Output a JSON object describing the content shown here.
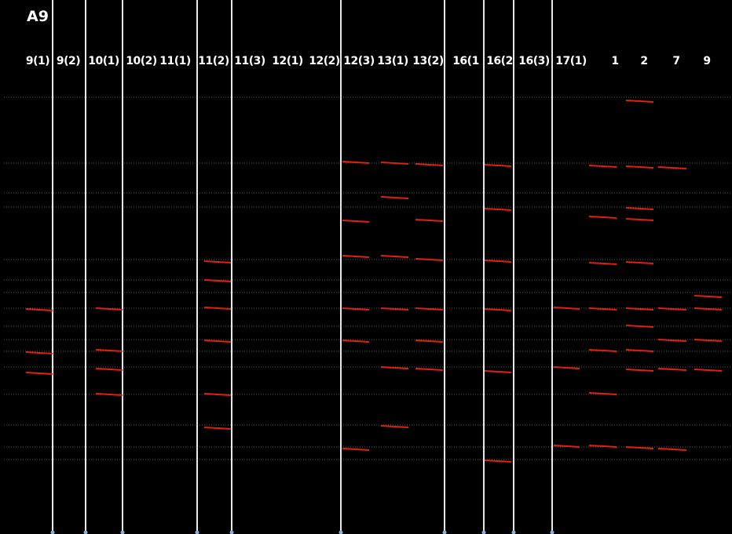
{
  "title": "A9",
  "lanes": [
    "9(1)",
    "9(2)",
    "10(1)",
    "10(2)",
    "11(1)",
    "11(2)",
    "11(3)",
    "12(1)",
    "12(2)",
    "12(3)",
    "13(1)",
    "13(2)",
    "16(1",
    "16(2",
    "16(3)",
    "17(1)",
    "1",
    "2",
    "7",
    "9"
  ]
}
